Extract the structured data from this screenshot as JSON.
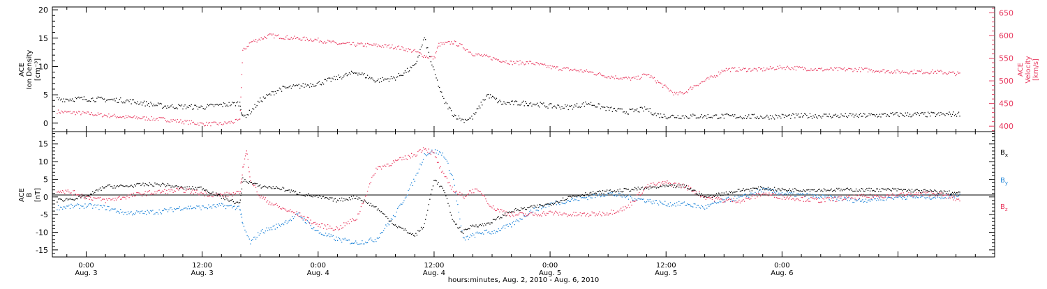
{
  "chart_data": [
    {
      "type": "scatter",
      "panel": "top",
      "ylabel": [
        "ACE",
        "Ion Density",
        "[cm⁻³]"
      ],
      "y2label": [
        "ACE",
        "Velocity",
        "[km/s]"
      ],
      "ylim": [
        -1.5,
        20.5
      ],
      "y2lim": [
        388,
        663
      ],
      "yticks": [
        0,
        5,
        10,
        15,
        20
      ],
      "y2ticks": [
        400,
        450,
        500,
        550,
        600,
        650
      ],
      "colors": {
        "density": "#000000",
        "velocity": "#e8385e"
      },
      "series": [
        {
          "name": "",
          "color": "#000000",
          "axis": "left",
          "x": [
            -3,
            0,
            4,
            8,
            12,
            14,
            15.9,
            16.2,
            17,
            18,
            20,
            22,
            24,
            26,
            28,
            30,
            32,
            34,
            35,
            36,
            37,
            38,
            39,
            40,
            41.5,
            43,
            46,
            48,
            50,
            52,
            54,
            56,
            58,
            59,
            60,
            62,
            66,
            70,
            72,
            76,
            80,
            84,
            88,
            90.5
          ],
          "y": [
            4.2,
            4.3,
            4.0,
            3.0,
            2.8,
            3.2,
            3.5,
            1.0,
            2.0,
            4.0,
            6.0,
            6.5,
            7.0,
            8.0,
            9.0,
            7.5,
            8.0,
            10.0,
            15.0,
            9.0,
            4.0,
            1.5,
            0.5,
            1.0,
            5.0,
            3.5,
            3.5,
            3.0,
            2.8,
            3.5,
            2.5,
            2.0,
            2.5,
            1.5,
            1.2,
            1.2,
            1.2,
            1.1,
            1.2,
            1.3,
            1.3,
            1.5,
            1.5,
            1.6
          ]
        },
        {
          "name": "",
          "color": "#e8385e",
          "axis": "right",
          "x": [
            -3,
            0,
            4,
            8,
            12,
            14,
            15.9,
            16.2,
            17,
            19,
            21,
            24,
            26,
            28,
            30,
            32,
            34,
            35,
            36,
            36.5,
            38,
            39,
            40,
            42,
            44,
            46,
            48,
            50,
            52,
            54,
            56,
            57,
            58,
            60,
            61,
            62,
            63,
            64,
            65,
            66,
            68,
            70,
            72,
            76,
            80,
            84,
            88,
            90.5
          ],
          "y": [
            432,
            428,
            420,
            415,
            405,
            405,
            412,
            565,
            585,
            600,
            595,
            590,
            582,
            580,
            578,
            575,
            565,
            555,
            550,
            580,
            585,
            575,
            560,
            550,
            540,
            540,
            530,
            525,
            520,
            510,
            505,
            505,
            515,
            485,
            470,
            475,
            490,
            500,
            510,
            525,
            525,
            525,
            530,
            525,
            525,
            520,
            520,
            515
          ]
        }
      ]
    },
    {
      "type": "scatter",
      "panel": "bottom",
      "ylabel": [
        "ACE",
        "B",
        "[nT]"
      ],
      "ylim": [
        -17,
        18.5
      ],
      "yticks": [
        -15,
        -10,
        -5,
        0,
        5,
        10,
        15
      ],
      "colors": {
        "Bx": "#000000",
        "By": "#1a82d8",
        "Bz": "#e8385e"
      },
      "series": [
        {
          "name": "Bx",
          "color": "#000000",
          "x": [
            -3,
            0,
            2,
            4,
            6,
            8,
            10,
            12,
            14,
            15.9,
            16.2,
            17,
            18,
            20,
            22,
            24,
            26,
            28,
            30,
            32,
            34,
            35,
            36,
            37,
            38,
            39,
            40,
            41,
            42,
            44,
            46,
            48,
            50,
            52,
            54,
            56,
            58,
            60,
            62,
            64,
            66,
            68,
            70,
            72,
            76,
            80,
            84,
            88,
            90.5
          ],
          "y": [
            -1,
            0,
            3,
            3,
            3.5,
            3.5,
            2.5,
            2.5,
            0,
            -2,
            5,
            4,
            3,
            2.5,
            1,
            0,
            -1,
            0,
            -3,
            -8,
            -11,
            -8,
            5,
            2,
            -7,
            -10,
            -8,
            -8,
            -7,
            -4,
            -3,
            -2,
            0,
            1,
            1.5,
            2,
            2.5,
            3,
            3,
            0,
            1,
            2,
            2.5,
            2,
            2,
            2,
            2,
            1.5,
            1
          ]
        },
        {
          "name": "By",
          "color": "#1a82d8",
          "x": [
            -3,
            0,
            2,
            4,
            6,
            8,
            10,
            12,
            14,
            15.9,
            16.2,
            17,
            18,
            20,
            22,
            24,
            26,
            28,
            30,
            32,
            34,
            35,
            36,
            37,
            38,
            39,
            40,
            41,
            42,
            44,
            46,
            48,
            50,
            52,
            54,
            56,
            58,
            60,
            62,
            64,
            66,
            68,
            70,
            72,
            76,
            80,
            84,
            88,
            90.5
          ],
          "y": [
            -3,
            -2.5,
            -3,
            -4.5,
            -4.5,
            -4,
            -3,
            -3,
            -2.5,
            -3,
            -8,
            -13,
            -10,
            -8,
            -5,
            -10,
            -12,
            -13,
            -12,
            -5,
            5,
            12,
            13,
            12,
            5,
            -12,
            -11,
            -10,
            -10,
            -8,
            -4,
            -2,
            -1,
            0,
            1,
            0,
            -1,
            -2,
            -2,
            -3,
            -1,
            0,
            2,
            1,
            0,
            -1,
            0,
            0,
            0.5
          ]
        },
        {
          "name": "Bz",
          "color": "#e8385e",
          "x": [
            -3,
            -1,
            0,
            2,
            4,
            6,
            8,
            10,
            12,
            14,
            15.9,
            16.2,
            16.6,
            17,
            18,
            20,
            22,
            24,
            26,
            28,
            30,
            32,
            34,
            35,
            36,
            37,
            38,
            39,
            40,
            41,
            42,
            44,
            46,
            48,
            50,
            52,
            54,
            56,
            58,
            60,
            62,
            64,
            66,
            68,
            70,
            72,
            76,
            80,
            84,
            88,
            90.5
          ],
          "y": [
            2,
            1,
            0,
            -1,
            0,
            1,
            1.5,
            2,
            1,
            0.5,
            1,
            8,
            13,
            5,
            0,
            -3,
            -5,
            -8,
            -9,
            -6,
            8,
            10,
            12,
            14,
            12,
            6,
            2,
            0,
            2,
            1,
            -3,
            -5,
            -5,
            -4.5,
            -5,
            -5,
            -4.5,
            -3,
            3,
            4,
            3,
            0,
            -1,
            -1,
            1,
            0,
            -1,
            0,
            0.5,
            1,
            -1
          ]
        }
      ],
      "legend": {
        "placement": "right",
        "entries": [
          "Bx",
          "By",
          "Bz"
        ]
      }
    }
  ],
  "xaxis": {
    "xlim": [
      -3.5,
      94
    ],
    "major_ticks": [
      0,
      12,
      24,
      36,
      48,
      60,
      72,
      84,
      96
    ],
    "tick_labels": [
      {
        "x": 0,
        "time": "0:00",
        "date": "Aug. 3"
      },
      {
        "x": 12,
        "time": "12:00",
        "date": "Aug. 3"
      },
      {
        "x": 24,
        "time": "0:00",
        "date": "Aug. 4"
      },
      {
        "x": 36,
        "time": "12:00",
        "date": "Aug. 4"
      },
      {
        "x": 48,
        "time": "0:00",
        "date": "Aug. 5"
      },
      {
        "x": 60,
        "time": "12:00",
        "date": "Aug. 5"
      },
      {
        "x": 72,
        "time": "0:00",
        "date": "Aug. 6"
      }
    ],
    "label": "hours:minutes, Aug.  2, 2010 - Aug.  6, 2010"
  }
}
